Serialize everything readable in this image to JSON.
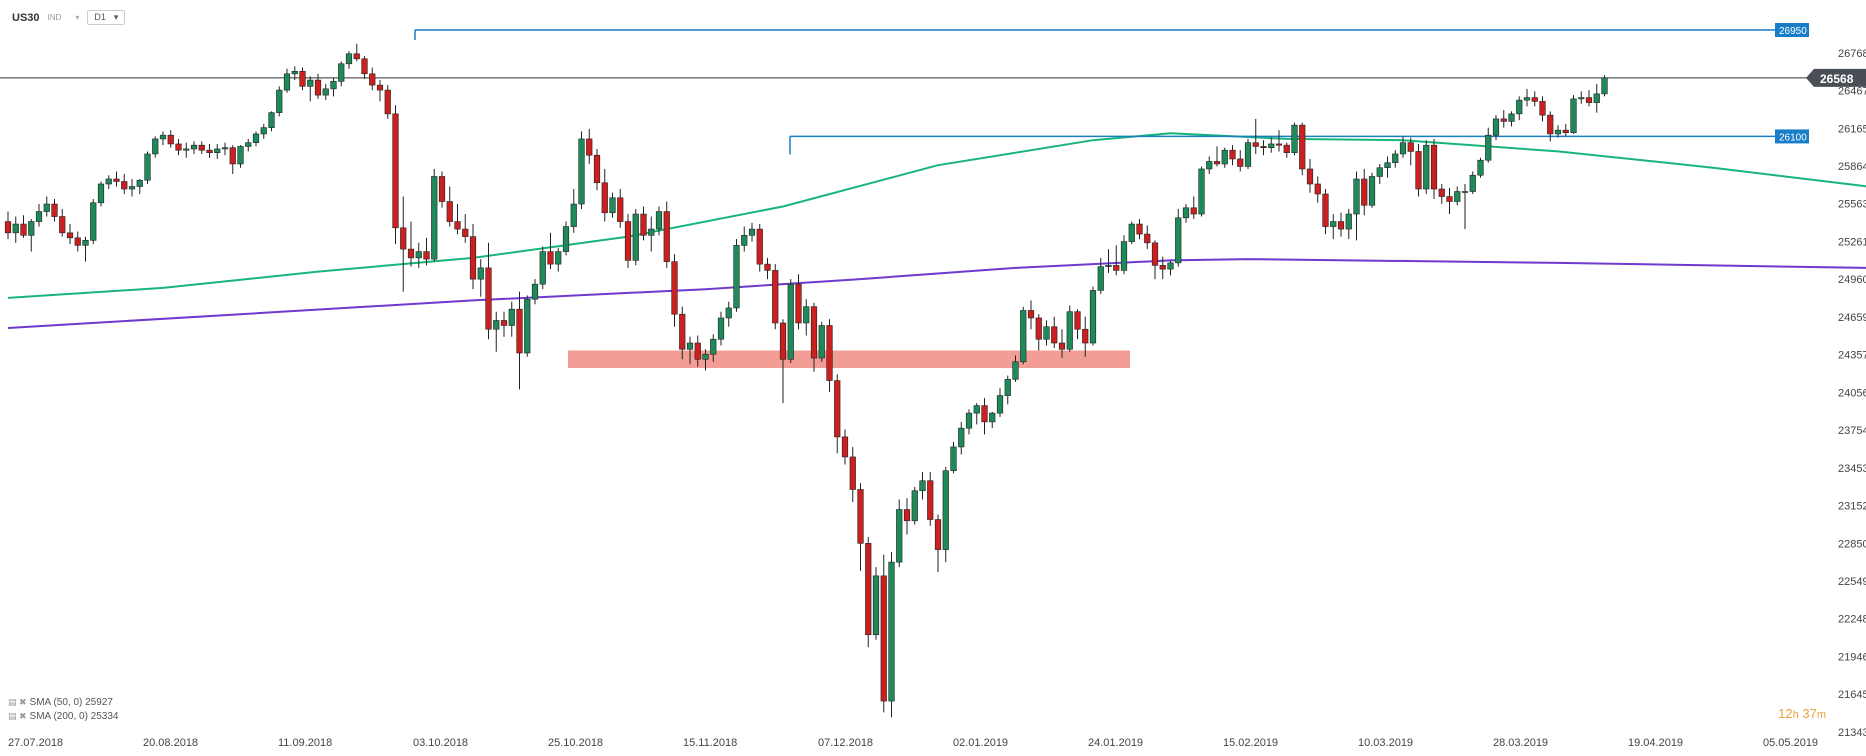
{
  "header": {
    "symbol": "US30",
    "type": "IND",
    "timeframe": "D1",
    "dropdown_arrow": "▾"
  },
  "timer": {
    "hours": "12",
    "h_unit": "h",
    "minutes": "37",
    "m_unit": "m"
  },
  "legend": [
    {
      "icons": "▤ ✖",
      "text": "SMA (50, 0) 25927"
    },
    {
      "icons": "▤ ✖",
      "text": "SMA (200, 0) 25334"
    }
  ],
  "colors": {
    "up": "#1e8a5a",
    "down": "#cc1f1f",
    "sma50": "#17b57a",
    "sma200": "#6f3ad0",
    "level": "#1a7dc8",
    "zone": "#f08c82",
    "price_tag": "#4a4f57",
    "axis_text": "#444"
  },
  "chart_data": {
    "type": "candlestick",
    "symbol": "US30",
    "timeframe": "D1",
    "ylim": [
      21343,
      26950
    ],
    "y_ticks": [
      "26768",
      "26467",
      "26165",
      "25864",
      "25563",
      "25261",
      "24960",
      "24659",
      "24357",
      "24056",
      "23754",
      "23453",
      "23152",
      "22850",
      "22549",
      "22248",
      "21946",
      "21645",
      "21343"
    ],
    "x_ticks": [
      "27.07.2018",
      "20.08.2018",
      "11.09.2018",
      "03.10.2018",
      "25.10.2018",
      "15.11.2018",
      "07.12.2018",
      "02.01.2019",
      "24.01.2019",
      "15.02.2019",
      "10.03.2019",
      "28.03.2019",
      "19.04.2019",
      "05.05.2019"
    ],
    "current_price": {
      "value": 26568,
      "label": "26568"
    },
    "levels": [
      {
        "value": 26950,
        "label": "26950"
      },
      {
        "value": 26100,
        "label": "26100"
      }
    ],
    "support_zone": {
      "low": 24250,
      "high": 24390
    },
    "sma50": [
      [
        0,
        24810
      ],
      [
        20,
        24890
      ],
      [
        40,
        25020
      ],
      [
        60,
        25130
      ],
      [
        80,
        25300
      ],
      [
        100,
        25540
      ],
      [
        120,
        25870
      ],
      [
        140,
        26070
      ],
      [
        150,
        26125
      ],
      [
        165,
        26080
      ],
      [
        180,
        26070
      ],
      [
        200,
        25980
      ],
      [
        220,
        25850
      ],
      [
        240,
        25700
      ],
      [
        260,
        25450
      ],
      [
        280,
        25070
      ],
      [
        300,
        24700
      ],
      [
        315,
        24530
      ],
      [
        330,
        24420
      ],
      [
        345,
        24310
      ],
      [
        360,
        24260
      ],
      [
        375,
        24260
      ],
      [
        390,
        24300
      ],
      [
        405,
        24400
      ],
      [
        420,
        24560
      ],
      [
        435,
        24780
      ],
      [
        450,
        25060
      ],
      [
        465,
        25340
      ],
      [
        480,
        25560
      ],
      [
        495,
        25740
      ],
      [
        505,
        25850
      ],
      [
        515,
        25927
      ]
    ],
    "sma200": [
      [
        0,
        24570
      ],
      [
        30,
        24680
      ],
      [
        60,
        24790
      ],
      [
        90,
        24880
      ],
      [
        110,
        24960
      ],
      [
        130,
        25050
      ],
      [
        150,
        25110
      ],
      [
        160,
        25120
      ],
      [
        200,
        25090
      ],
      [
        240,
        25050
      ],
      [
        280,
        25000
      ],
      [
        310,
        24975
      ],
      [
        340,
        24960
      ],
      [
        370,
        24960
      ],
      [
        400,
        25000
      ],
      [
        430,
        25100
      ],
      [
        460,
        25180
      ],
      [
        490,
        25270
      ],
      [
        515,
        25334
      ]
    ],
    "candles": [
      [
        25420,
        25500,
        25280,
        25330
      ],
      [
        25330,
        25460,
        25250,
        25400
      ],
      [
        25400,
        25470,
        25290,
        25310
      ],
      [
        25310,
        25440,
        25180,
        25420
      ],
      [
        25420,
        25560,
        25380,
        25500
      ],
      [
        25500,
        25620,
        25460,
        25560
      ],
      [
        25560,
        25600,
        25420,
        25460
      ],
      [
        25460,
        25520,
        25300,
        25330
      ],
      [
        25330,
        25400,
        25240,
        25290
      ],
      [
        25290,
        25340,
        25180,
        25230
      ],
      [
        25230,
        25300,
        25100,
        25270
      ],
      [
        25270,
        25600,
        25240,
        25570
      ],
      [
        25570,
        25740,
        25540,
        25720
      ],
      [
        25720,
        25790,
        25680,
        25760
      ],
      [
        25760,
        25820,
        25700,
        25740
      ],
      [
        25740,
        25800,
        25640,
        25680
      ],
      [
        25680,
        25760,
        25620,
        25700
      ],
      [
        25700,
        25760,
        25640,
        25750
      ],
      [
        25750,
        25980,
        25720,
        25960
      ],
      [
        25960,
        26100,
        25930,
        26080
      ],
      [
        26080,
        26140,
        26030,
        26110
      ],
      [
        26110,
        26150,
        26010,
        26040
      ],
      [
        26040,
        26080,
        25950,
        25990
      ],
      [
        25990,
        26050,
        25930,
        26000
      ],
      [
        26000,
        26060,
        25960,
        26030
      ],
      [
        26030,
        26060,
        25960,
        25990
      ],
      [
        25990,
        26040,
        25930,
        25970
      ],
      [
        25970,
        26040,
        25920,
        26000
      ],
      [
        26000,
        26050,
        25950,
        26010
      ],
      [
        26010,
        26030,
        25800,
        25880
      ],
      [
        25880,
        26030,
        25850,
        26020
      ],
      [
        26020,
        26080,
        25980,
        26050
      ],
      [
        26050,
        26140,
        26020,
        26120
      ],
      [
        26120,
        26200,
        26080,
        26170
      ],
      [
        26170,
        26300,
        26140,
        26290
      ],
      [
        26290,
        26500,
        26260,
        26470
      ],
      [
        26470,
        26640,
        26450,
        26600
      ],
      [
        26600,
        26660,
        26550,
        26620
      ],
      [
        26620,
        26650,
        26470,
        26500
      ],
      [
        26500,
        26580,
        26380,
        26550
      ],
      [
        26550,
        26600,
        26400,
        26430
      ],
      [
        26430,
        26520,
        26390,
        26480
      ],
      [
        26480,
        26570,
        26420,
        26540
      ],
      [
        26540,
        26700,
        26500,
        26680
      ],
      [
        26680,
        26780,
        26640,
        26760
      ],
      [
        26760,
        26840,
        26700,
        26720
      ],
      [
        26720,
        26740,
        26560,
        26600
      ],
      [
        26600,
        26650,
        26470,
        26510
      ],
      [
        26510,
        26550,
        26380,
        26470
      ],
      [
        26470,
        26510,
        26240,
        26280
      ],
      [
        26280,
        26350,
        25240,
        25370
      ],
      [
        25370,
        25620,
        24860,
        25200
      ],
      [
        25200,
        25420,
        25060,
        25130
      ],
      [
        25130,
        25250,
        25050,
        25180
      ],
      [
        25180,
        25290,
        25070,
        25120
      ],
      [
        25120,
        25840,
        25100,
        25780
      ],
      [
        25780,
        25820,
        25530,
        25580
      ],
      [
        25580,
        25700,
        25380,
        25420
      ],
      [
        25420,
        25560,
        25320,
        25360
      ],
      [
        25360,
        25480,
        25250,
        25300
      ],
      [
        25300,
        25400,
        24880,
        24960
      ],
      [
        24960,
        25120,
        24820,
        25050
      ],
      [
        25050,
        25250,
        24480,
        24560
      ],
      [
        24560,
        24700,
        24380,
        24630
      ],
      [
        24630,
        24700,
        24500,
        24590
      ],
      [
        24590,
        24780,
        24500,
        24720
      ],
      [
        24720,
        24860,
        24080,
        24370
      ],
      [
        24370,
        24830,
        24340,
        24800
      ],
      [
        24800,
        24960,
        24760,
        24920
      ],
      [
        24920,
        25220,
        24880,
        25180
      ],
      [
        25180,
        25330,
        25040,
        25080
      ],
      [
        25080,
        25210,
        25020,
        25180
      ],
      [
        25180,
        25420,
        25150,
        25380
      ],
      [
        25380,
        25680,
        25330,
        25560
      ],
      [
        25560,
        26140,
        25520,
        26080
      ],
      [
        26080,
        26160,
        25880,
        25950
      ],
      [
        25950,
        26000,
        25670,
        25730
      ],
      [
        25730,
        25840,
        25420,
        25490
      ],
      [
        25490,
        25650,
        25450,
        25610
      ],
      [
        25610,
        25680,
        25370,
        25420
      ],
      [
        25420,
        25480,
        25050,
        25110
      ],
      [
        25110,
        25520,
        25070,
        25480
      ],
      [
        25480,
        25540,
        25270,
        25310
      ],
      [
        25310,
        25460,
        25180,
        25360
      ],
      [
        25360,
        25540,
        25310,
        25500
      ],
      [
        25500,
        25580,
        25050,
        25100
      ],
      [
        25100,
        25160,
        24580,
        24680
      ],
      [
        24680,
        24740,
        24320,
        24400
      ],
      [
        24400,
        24500,
        24280,
        24450
      ],
      [
        24450,
        24510,
        24260,
        24320
      ],
      [
        24320,
        24400,
        24230,
        24360
      ],
      [
        24360,
        24520,
        24300,
        24480
      ],
      [
        24480,
        24700,
        24430,
        24650
      ],
      [
        24650,
        24780,
        24580,
        24730
      ],
      [
        24730,
        25280,
        24700,
        25230
      ],
      [
        25230,
        25380,
        25180,
        25310
      ],
      [
        25310,
        25410,
        25260,
        25360
      ],
      [
        25360,
        25400,
        25020,
        25080
      ],
      [
        25080,
        25130,
        24960,
        25030
      ],
      [
        25030,
        25080,
        24560,
        24610
      ],
      [
        24610,
        24640,
        23970,
        24320
      ],
      [
        24320,
        24960,
        24290,
        24920
      ],
      [
        24920,
        25000,
        24560,
        24610
      ],
      [
        24610,
        24800,
        24510,
        24740
      ],
      [
        24740,
        24770,
        24220,
        24330
      ],
      [
        24330,
        24620,
        24300,
        24590
      ],
      [
        24590,
        24640,
        24060,
        24150
      ],
      [
        24150,
        24200,
        23570,
        23700
      ],
      [
        23700,
        23760,
        23480,
        23540
      ],
      [
        23540,
        23620,
        23180,
        23280
      ],
      [
        23280,
        23330,
        22630,
        22850
      ],
      [
        22850,
        22900,
        22020,
        22120
      ],
      [
        22120,
        22660,
        22080,
        22590
      ],
      [
        22590,
        22760,
        21500,
        21590
      ],
      [
        21590,
        22780,
        21460,
        22700
      ],
      [
        22700,
        23200,
        22660,
        23120
      ],
      [
        23120,
        23210,
        22920,
        23030
      ],
      [
        23030,
        23300,
        23000,
        23270
      ],
      [
        23270,
        23420,
        23200,
        23350
      ],
      [
        23350,
        23420,
        22990,
        23040
      ],
      [
        23040,
        23080,
        22620,
        22800
      ],
      [
        22800,
        23460,
        22700,
        23430
      ],
      [
        23430,
        23660,
        23410,
        23620
      ],
      [
        23620,
        23820,
        23560,
        23770
      ],
      [
        23770,
        23920,
        23720,
        23890
      ],
      [
        23890,
        23970,
        23800,
        23950
      ],
      [
        23950,
        24010,
        23720,
        23820
      ],
      [
        23820,
        23900,
        23770,
        23890
      ],
      [
        23890,
        24090,
        23860,
        24030
      ],
      [
        24030,
        24190,
        23960,
        24160
      ],
      [
        24160,
        24350,
        24140,
        24300
      ],
      [
        24300,
        24740,
        24280,
        24710
      ],
      [
        24710,
        24790,
        24560,
        24650
      ],
      [
        24650,
        24680,
        24390,
        24480
      ],
      [
        24480,
        24630,
        24430,
        24580
      ],
      [
        24580,
        24660,
        24410,
        24450
      ],
      [
        24450,
        24560,
        24330,
        24400
      ],
      [
        24400,
        24750,
        24380,
        24700
      ],
      [
        24700,
        24720,
        24480,
        24560
      ],
      [
        24560,
        24660,
        24340,
        24450
      ],
      [
        24450,
        24900,
        24430,
        24870
      ],
      [
        24870,
        25130,
        24840,
        25060
      ],
      [
        25060,
        25200,
        25010,
        25070
      ],
      [
        25070,
        25230,
        24990,
        25030
      ],
      [
        25030,
        25310,
        25000,
        25260
      ],
      [
        25260,
        25420,
        25240,
        25400
      ],
      [
        25400,
        25440,
        25280,
        25320
      ],
      [
        25320,
        25390,
        25200,
        25250
      ],
      [
        25250,
        25270,
        24960,
        25070
      ],
      [
        25070,
        25140,
        24960,
        25040
      ],
      [
        25040,
        25110,
        24990,
        25090
      ],
      [
        25090,
        25520,
        25060,
        25450
      ],
      [
        25450,
        25560,
        25410,
        25530
      ],
      [
        25530,
        25620,
        25440,
        25480
      ],
      [
        25480,
        25860,
        25460,
        25840
      ],
      [
        25840,
        25940,
        25800,
        25900
      ],
      [
        25900,
        26020,
        25860,
        25880
      ],
      [
        25880,
        26010,
        25850,
        25990
      ],
      [
        25990,
        26030,
        25870,
        25920
      ],
      [
        25920,
        25990,
        25820,
        25860
      ],
      [
        25860,
        26080,
        25840,
        26050
      ],
      [
        26050,
        26240,
        25960,
        26020
      ],
      [
        26020,
        26070,
        25950,
        26010
      ],
      [
        26010,
        26090,
        25970,
        26040
      ],
      [
        26040,
        26150,
        25980,
        26030
      ],
      [
        26030,
        26050,
        25930,
        25970
      ],
      [
        25970,
        26210,
        25950,
        26190
      ],
      [
        26190,
        26210,
        25790,
        25840
      ],
      [
        25840,
        25920,
        25650,
        25720
      ],
      [
        25720,
        25780,
        25570,
        25640
      ],
      [
        25640,
        25680,
        25320,
        25380
      ],
      [
        25380,
        25480,
        25280,
        25420
      ],
      [
        25420,
        25490,
        25300,
        25360
      ],
      [
        25360,
        25520,
        25280,
        25480
      ],
      [
        25480,
        25820,
        25270,
        25760
      ],
      [
        25760,
        25840,
        25470,
        25550
      ],
      [
        25550,
        25810,
        25530,
        25780
      ],
      [
        25780,
        25880,
        25720,
        25850
      ],
      [
        25850,
        25940,
        25770,
        25890
      ],
      [
        25890,
        25990,
        25850,
        25960
      ],
      [
        25960,
        26100,
        25930,
        26050
      ],
      [
        26050,
        26090,
        25870,
        25980
      ],
      [
        25980,
        26040,
        25620,
        25680
      ],
      [
        25680,
        26070,
        25640,
        26030
      ],
      [
        26030,
        26080,
        25600,
        25680
      ],
      [
        25680,
        25720,
        25560,
        25620
      ],
      [
        25620,
        25690,
        25480,
        25580
      ],
      [
        25580,
        25700,
        25550,
        25660
      ],
      [
        25660,
        25720,
        25360,
        25660
      ],
      [
        25660,
        25820,
        25640,
        25790
      ],
      [
        25790,
        25930,
        25770,
        25910
      ],
      [
        25910,
        26170,
        25890,
        26110
      ],
      [
        26110,
        26270,
        26070,
        26240
      ],
      [
        26240,
        26310,
        26170,
        26220
      ],
      [
        26220,
        26300,
        26180,
        26280
      ],
      [
        26280,
        26420,
        26230,
        26390
      ],
      [
        26390,
        26480,
        26340,
        26410
      ],
      [
        26410,
        26460,
        26340,
        26380
      ],
      [
        26380,
        26420,
        26220,
        26270
      ],
      [
        26270,
        26300,
        26060,
        26120
      ],
      [
        26120,
        26190,
        26090,
        26150
      ],
      [
        26150,
        26200,
        26100,
        26130
      ],
      [
        26130,
        26430,
        26120,
        26400
      ],
      [
        26400,
        26460,
        26360,
        26410
      ],
      [
        26410,
        26470,
        26340,
        26370
      ],
      [
        26370,
        26520,
        26290,
        26440
      ],
      [
        26440,
        26590,
        26420,
        26568
      ]
    ]
  }
}
